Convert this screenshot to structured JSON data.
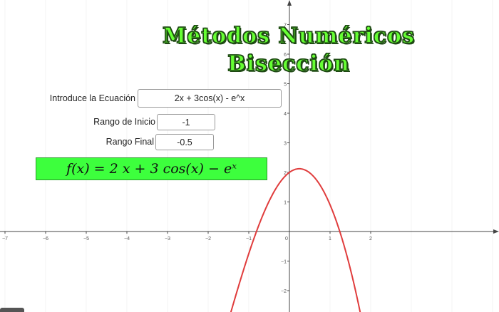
{
  "title": {
    "line1": "Métodos Numéricos",
    "line2": "Bisección"
  },
  "equation": {
    "label": "Introduce la Ecuación",
    "value": "2x + 3cos(x) - e^x"
  },
  "range_start": {
    "label": "Rango de Inicio",
    "value": "-1"
  },
  "range_end": {
    "label": "Rango Final",
    "value": "-0.5"
  },
  "formula_display": "f(x) = 2 x + 3  cos(x) − eˣ",
  "graph": {
    "x_ticks": [
      "−7",
      "−6",
      "−5",
      "−4",
      "−3",
      "−2",
      "−1",
      "0",
      "1",
      "2"
    ],
    "y_ticks": [
      "−2",
      "−1",
      "1",
      "2",
      "3",
      "4",
      "5",
      "6",
      "7"
    ],
    "x_tick_values": [
      -7,
      -6,
      -5,
      -4,
      -3,
      -2,
      -1,
      0,
      1,
      2
    ],
    "y_tick_values": [
      -2,
      -1,
      1,
      2,
      3,
      4,
      5,
      6,
      7
    ],
    "curve_color": "#e03c3c",
    "formula_box_color": "#3dff3d",
    "title_color": "#66ff33"
  }
}
